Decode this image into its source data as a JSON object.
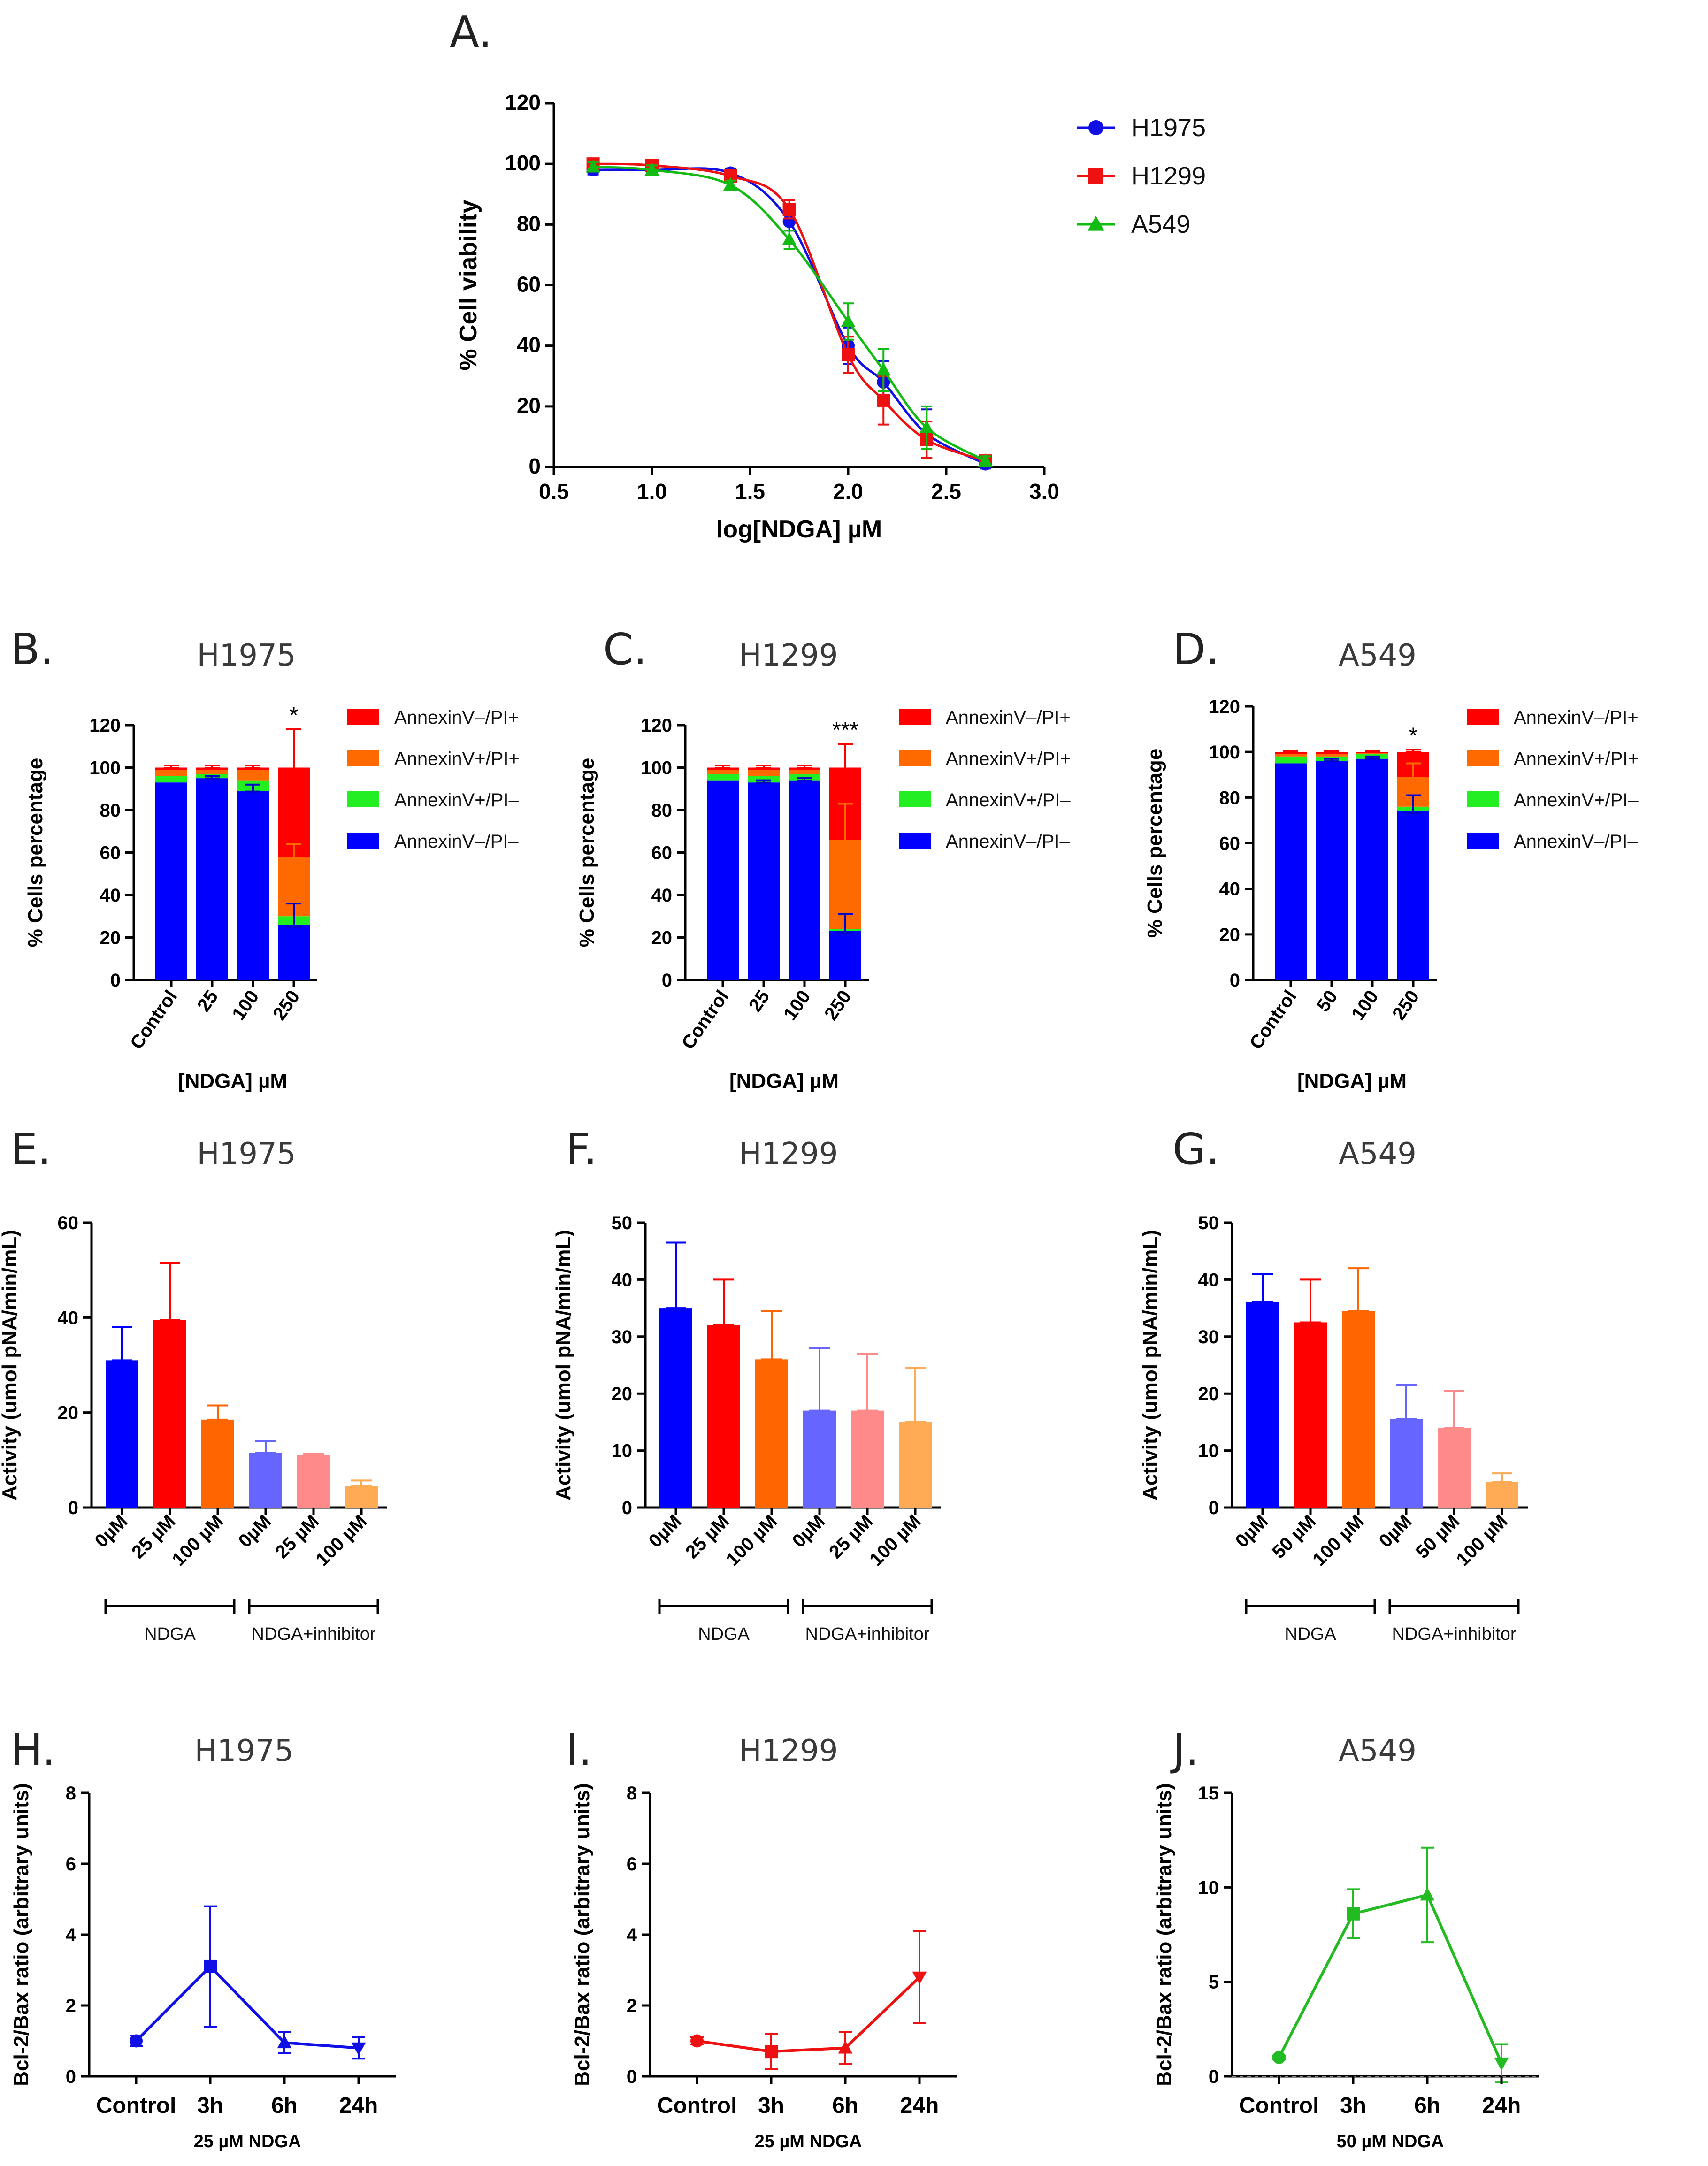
{
  "chart_data": [
    {
      "id": "A",
      "type": "line",
      "letter": "A.",
      "title": "",
      "xlabel": "log[NDGA] µM",
      "ylabel": "% Cell viability",
      "xlim": [
        0.5,
        3.0
      ],
      "ylim": [
        0,
        120
      ],
      "xticks": [
        "0.5",
        "1.0",
        "1.5",
        "2.0",
        "2.5",
        "3.0"
      ],
      "yticks": [
        "0",
        "20",
        "40",
        "60",
        "80",
        "100",
        "120"
      ],
      "x": [
        0.7,
        1.0,
        1.4,
        1.7,
        2.0,
        2.18,
        2.4,
        2.7
      ],
      "series": [
        {
          "name": "H1975",
          "color": "#1010e6",
          "marker": "circle",
          "values": [
            98,
            98,
            97,
            81,
            40,
            28,
            11,
            1
          ],
          "errors": [
            1.5,
            1.5,
            1.5,
            3,
            6,
            7,
            8,
            1.5
          ]
        },
        {
          "name": "H1299",
          "color": "#ee1111",
          "marker": "square",
          "values": [
            100,
            99.5,
            96,
            85,
            37,
            22,
            9,
            2
          ],
          "errors": [
            1.5,
            1.5,
            1.5,
            3,
            6,
            8,
            6,
            1.5
          ]
        },
        {
          "name": "A549",
          "color": "#11bb11",
          "marker": "triangle",
          "values": [
            99,
            98,
            93,
            75,
            48,
            32,
            13,
            2
          ],
          "errors": [
            1.5,
            1.5,
            1.5,
            3,
            6,
            7,
            7,
            1.5
          ]
        }
      ]
    },
    {
      "id": "B",
      "type": "bar",
      "stacked": true,
      "letter": "B.",
      "title": "H1975",
      "xlabel": "[NDGA] µM",
      "ylabel": "% Cells percentage",
      "ylim": [
        0,
        120
      ],
      "yticks": [
        "0",
        "20",
        "40",
        "60",
        "80",
        "100",
        "120"
      ],
      "categories": [
        "Control",
        "25",
        "100",
        "250"
      ],
      "series": [
        {
          "name": "AnnexinV–/PI–",
          "color": "#0000ff",
          "values": [
            93,
            95,
            89,
            26
          ]
        },
        {
          "name": "AnnexinV+/PI–",
          "color": "#22ee22",
          "values": [
            3,
            2,
            5,
            4
          ]
        },
        {
          "name": "AnnexinV+/PI+",
          "color": "#ff6a00",
          "values": [
            3,
            2,
            5,
            28
          ]
        },
        {
          "name": "AnnexinV–/PI+",
          "color": "#ff0000",
          "values": [
            1,
            1,
            1,
            42
          ]
        }
      ],
      "errors": [
        [
          0,
          1,
          3,
          10
        ],
        [
          0,
          0,
          0,
          0
        ],
        [
          0,
          0,
          0,
          6
        ],
        [
          1,
          1,
          1,
          18
        ]
      ],
      "annotations": [
        "",
        "",
        "",
        "*"
      ]
    },
    {
      "id": "C",
      "type": "bar",
      "stacked": true,
      "letter": "C.",
      "title": "H1299",
      "xlabel": "[NDGA] µM",
      "ylabel": "% Cells percentage",
      "ylim": [
        0,
        120
      ],
      "yticks": [
        "0",
        "20",
        "40",
        "60",
        "80",
        "100",
        "120"
      ],
      "categories": [
        "Control",
        "25",
        "100",
        "250"
      ],
      "series": [
        {
          "name": "AnnexinV–/PI–",
          "color": "#0000ff",
          "values": [
            94,
            93,
            94,
            23
          ]
        },
        {
          "name": "AnnexinV+/PI–",
          "color": "#22ee22",
          "values": [
            3,
            3,
            3,
            1
          ]
        },
        {
          "name": "AnnexinV+/PI+",
          "color": "#ff6a00",
          "values": [
            2,
            3,
            2,
            42
          ]
        },
        {
          "name": "AnnexinV–/PI+",
          "color": "#ff0000",
          "values": [
            1,
            1,
            1,
            34
          ]
        }
      ],
      "errors": [
        [
          0,
          1,
          1,
          8
        ],
        [
          0,
          0,
          0,
          0
        ],
        [
          0,
          0,
          0,
          17
        ],
        [
          1,
          1,
          1,
          11
        ]
      ],
      "annotations": [
        "",
        "",
        "",
        "***"
      ]
    },
    {
      "id": "D",
      "type": "bar",
      "stacked": true,
      "letter": "D.",
      "title": "A549",
      "xlabel": "[NDGA] µM",
      "ylabel": "% Cells percentage",
      "ylim": [
        0,
        120
      ],
      "yticks": [
        "0",
        "20",
        "40",
        "60",
        "80",
        "100",
        "120"
      ],
      "categories": [
        "Control",
        "50",
        "100",
        "250"
      ],
      "series": [
        {
          "name": "AnnexinV–/PI–",
          "color": "#0000ff",
          "values": [
            95,
            96,
            97,
            74
          ]
        },
        {
          "name": "AnnexinV+/PI–",
          "color": "#22ee22",
          "values": [
            3,
            2,
            2,
            2
          ]
        },
        {
          "name": "AnnexinV+/PI+",
          "color": "#ff6a00",
          "values": [
            1,
            1,
            0.5,
            13
          ]
        },
        {
          "name": "AnnexinV–/PI+",
          "color": "#ff0000",
          "values": [
            1,
            1,
            0.5,
            11
          ]
        }
      ],
      "errors": [
        [
          0,
          1,
          1,
          7
        ],
        [
          0,
          0,
          0,
          0
        ],
        [
          0,
          0,
          0,
          6
        ],
        [
          0.5,
          0.5,
          0.5,
          1
        ]
      ],
      "annotations": [
        "",
        "",
        "",
        "*"
      ]
    },
    {
      "id": "E",
      "type": "bar",
      "letter": "E.",
      "title": "H1975",
      "xlabel": "",
      "ylabel": "Activity (umol pNA/min/mL)",
      "ylim": [
        0,
        60
      ],
      "yticks": [
        "0",
        "20",
        "40",
        "60"
      ],
      "categories": [
        "0µM",
        "25 µM",
        "100 µM",
        "0µM",
        "25 µM",
        "100 µM"
      ],
      "values": [
        31,
        39.5,
        18.5,
        11.5,
        11,
        4.5
      ],
      "errors": [
        7,
        12,
        3,
        2.5,
        0.3,
        1.2
      ],
      "colors": [
        "#0000ff",
        "#ff0000",
        "#ff6600",
        "#6666ff",
        "#ff8a8a",
        "#ffaa55"
      ],
      "groups": [
        {
          "label": "NDGA",
          "from": 0,
          "to": 2
        },
        {
          "label": "NDGA+inhibitor",
          "from": 3,
          "to": 5
        }
      ]
    },
    {
      "id": "F",
      "type": "bar",
      "letter": "F.",
      "title": "H1299",
      "xlabel": "",
      "ylabel": "Activity (umol pNA/min/mL)",
      "ylim": [
        0,
        50
      ],
      "yticks": [
        "0",
        "10",
        "20",
        "30",
        "40",
        "50"
      ],
      "categories": [
        "0µM",
        "25 µM",
        "100 µM",
        "0µM",
        "25 µM",
        "100 µM"
      ],
      "values": [
        35,
        32,
        26,
        17,
        17,
        15
      ],
      "errors": [
        11.5,
        8,
        8.5,
        11,
        10,
        9.5
      ],
      "colors": [
        "#0000ff",
        "#ff0000",
        "#ff6600",
        "#6666ff",
        "#ff8a8a",
        "#ffaa55"
      ],
      "groups": [
        {
          "label": "NDGA",
          "from": 0,
          "to": 2
        },
        {
          "label": "NDGA+inhibitor",
          "from": 3,
          "to": 5
        }
      ]
    },
    {
      "id": "G",
      "type": "bar",
      "letter": "G.",
      "title": "A549",
      "xlabel": "",
      "ylabel": "Activity (umol pNA/min/mL)",
      "ylim": [
        0,
        50
      ],
      "yticks": [
        "0",
        "10",
        "20",
        "30",
        "40",
        "50"
      ],
      "categories": [
        "0µM",
        "50 µM",
        "100 µM",
        "0µM",
        "50 µM",
        "100 µM"
      ],
      "values": [
        36,
        32.5,
        34.5,
        15.5,
        14,
        4.5
      ],
      "errors": [
        5,
        7.5,
        7.5,
        6,
        6.5,
        1.5
      ],
      "colors": [
        "#0000ff",
        "#ff0000",
        "#ff6600",
        "#6666ff",
        "#ff8a8a",
        "#ffaa55"
      ],
      "groups": [
        {
          "label": "NDGA",
          "from": 0,
          "to": 2
        },
        {
          "label": "NDGA+inhibitor",
          "from": 3,
          "to": 5
        }
      ]
    },
    {
      "id": "H",
      "type": "line",
      "letter": "H.",
      "title": "H1975",
      "xlabel": "25 µM NDGA",
      "ylabel": "Bcl-2/Bax ratio (arbitrary units)",
      "ylim": [
        0,
        8
      ],
      "yticks": [
        "0",
        "2",
        "4",
        "6",
        "8"
      ],
      "categories": [
        "Control",
        "3h",
        "6h",
        "24h"
      ],
      "series": [
        {
          "name": "H1975",
          "color": "#1010e6",
          "values": [
            1,
            3.1,
            0.95,
            0.8
          ],
          "errors": [
            0.15,
            1.7,
            0.3,
            0.3
          ],
          "markers": [
            "circle",
            "square",
            "triangle",
            "tri-down"
          ]
        }
      ]
    },
    {
      "id": "I",
      "type": "line",
      "letter": "I.",
      "title": "H1299",
      "xlabel": "25 µM NDGA",
      "ylabel": "Bcl-2/Bax ratio (arbitrary units)",
      "ylim": [
        0,
        8
      ],
      "yticks": [
        "0",
        "2",
        "4",
        "6",
        "8"
      ],
      "categories": [
        "Control",
        "3h",
        "6h",
        "24h"
      ],
      "series": [
        {
          "name": "H1299",
          "color": "#ee1111",
          "values": [
            1,
            0.7,
            0.8,
            2.8
          ],
          "errors": [
            0.1,
            0.5,
            0.45,
            1.3
          ],
          "markers": [
            "circle",
            "square",
            "triangle",
            "tri-down"
          ]
        }
      ]
    },
    {
      "id": "J",
      "type": "line",
      "letter": "J.",
      "title": "A549",
      "xlabel": "50 µM NDGA",
      "ylabel": "Bcl-2/Bax ratio (arbitrary units)",
      "ylim": [
        0,
        15
      ],
      "yticks": [
        "0",
        "5",
        "10",
        "15"
      ],
      "categories": [
        "Control",
        "3h",
        "6h",
        "24h"
      ],
      "series": [
        {
          "name": "A549",
          "color": "#22bb22",
          "values": [
            1,
            8.6,
            9.6,
            0.7
          ],
          "errors": [
            0.1,
            1.3,
            2.5,
            1
          ],
          "markers": [
            "circle",
            "square",
            "triangle",
            "tri-down"
          ]
        }
      ]
    }
  ]
}
